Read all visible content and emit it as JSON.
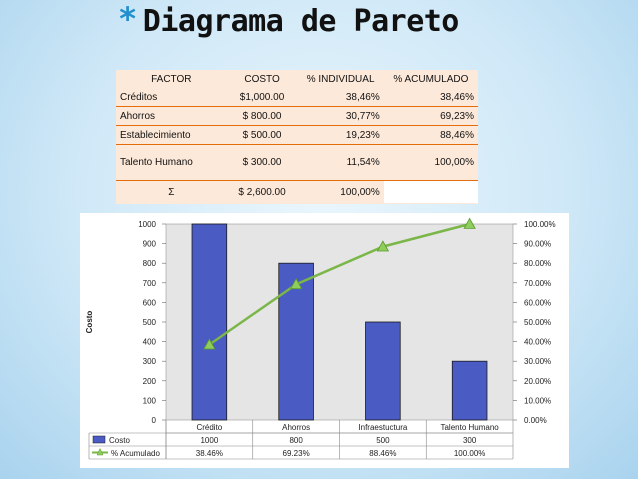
{
  "slide": {
    "bullet": "*",
    "title": "Diagrama de Pareto"
  },
  "table": {
    "headers": [
      "FACTOR",
      "COSTO",
      "% INDIVIDUAL",
      "% ACUMULADO"
    ],
    "rows": [
      [
        "Créditos",
        "$1,000.00",
        "38,46%",
        "38,46%"
      ],
      [
        "Ahorros",
        "$ 800.00",
        "30,77%",
        "69,23%"
      ],
      [
        "Establecimiento",
        "$ 500.00",
        "19,23%",
        "88,46%"
      ],
      [
        "Talento Humano",
        "$ 300.00",
        "11,54%",
        "100,00%"
      ]
    ],
    "total": [
      "Σ",
      "$ 2,600.00",
      "100,00%",
      ""
    ]
  },
  "chart_data": {
    "type": "bar",
    "categories": [
      "Crédito",
      "Ahorros",
      "Infraestuctura",
      "Talento Humano"
    ],
    "series": [
      {
        "name": "Costo",
        "type": "bar",
        "color": "#4a5bc4",
        "values": [
          1000,
          800,
          500,
          300
        ],
        "labels": [
          "1000",
          "800",
          "500",
          "300"
        ]
      },
      {
        "name": "% Acumulado",
        "type": "line",
        "axis": "right",
        "color": "#7ab648",
        "values": [
          38.46,
          69.23,
          88.46,
          100.0
        ],
        "labels": [
          "38.46%",
          "69.23%",
          "88.46%",
          "100.00%"
        ]
      }
    ],
    "ylabel": "Costo",
    "ylim": [
      0,
      1000
    ],
    "y_ticks": [
      "0",
      "100",
      "200",
      "300",
      "400",
      "500",
      "600",
      "700",
      "800",
      "900",
      "1000"
    ],
    "y2lim": [
      0,
      100
    ],
    "y2_ticks": [
      "0.00%",
      "10.00%",
      "20.00%",
      "30.00%",
      "40.00%",
      "50.00%",
      "60.00%",
      "70.00%",
      "80.00%",
      "90.00%",
      "100.00%"
    ],
    "plot_background": "#e5e5e5",
    "data_table": true
  }
}
